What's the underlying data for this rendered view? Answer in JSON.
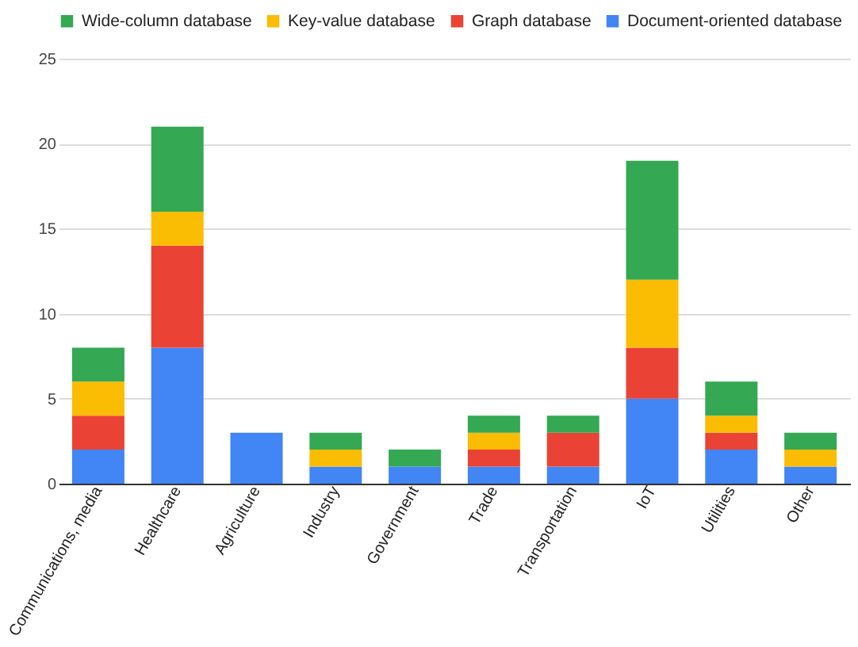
{
  "chart_data": {
    "type": "bar",
    "stacked": true,
    "categories": [
      "Communications, media",
      "Healthcare",
      "Agriculture",
      "Industry",
      "Government",
      "Trade",
      "Transportation",
      "IoT",
      "Utilities",
      "Other"
    ],
    "series": [
      {
        "name": "Document-oriented database",
        "color": "#4285f4",
        "values": [
          2,
          8,
          3,
          1,
          1,
          1,
          1,
          5,
          2,
          1
        ]
      },
      {
        "name": "Graph database",
        "color": "#ea4335",
        "values": [
          2,
          6,
          0,
          0,
          0,
          1,
          2,
          3,
          1,
          0
        ]
      },
      {
        "name": "Key-value database",
        "color": "#fbbc04",
        "values": [
          2,
          2,
          0,
          1,
          0,
          1,
          0,
          4,
          1,
          1
        ]
      },
      {
        "name": "Wide-column database",
        "color": "#34a853",
        "values": [
          2,
          5,
          0,
          1,
          1,
          1,
          1,
          7,
          2,
          1
        ]
      }
    ],
    "ylim": [
      0,
      25
    ],
    "yticks": [
      0,
      5,
      10,
      15,
      20,
      25
    ],
    "grid": "y",
    "legend": "top"
  }
}
